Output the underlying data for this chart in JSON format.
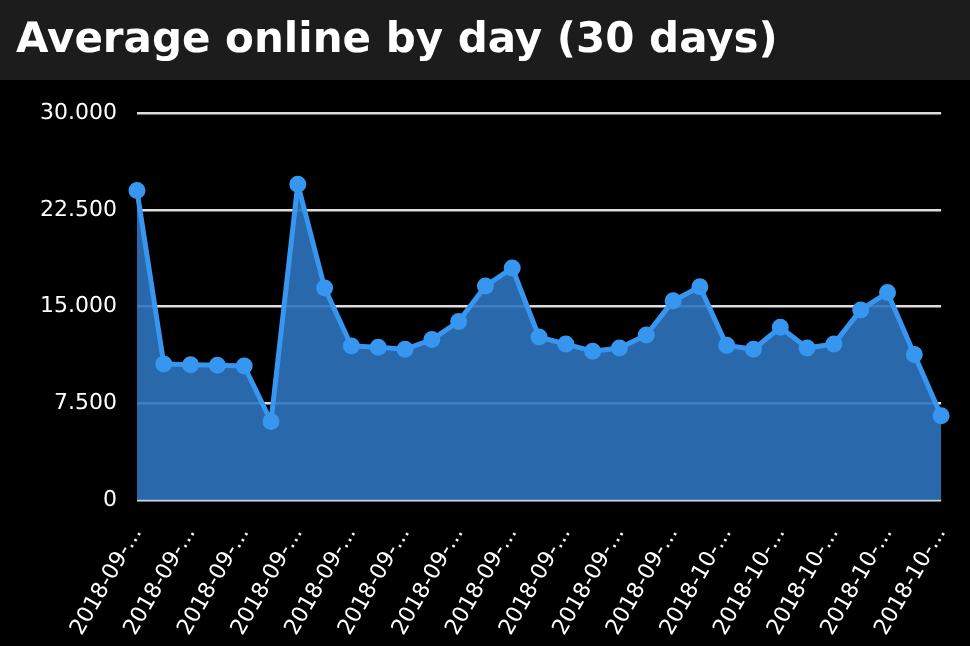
{
  "chart_data": {
    "type": "area",
    "title": "Average online by day (30 days)",
    "categories": [
      "2018-09-...",
      null,
      "2018-09-...",
      null,
      "2018-09-...",
      null,
      "2018-09-...",
      null,
      "2018-09-...",
      null,
      "2018-09-...",
      null,
      "2018-09-...",
      null,
      "2018-09-...",
      null,
      "2018-09-...",
      null,
      "2018-09-...",
      null,
      "2018-09-...",
      null,
      "2018-10-...",
      null,
      "2018-10-...",
      null,
      "2018-10-...",
      null,
      "2018-10-...",
      null,
      "2018-10-..."
    ],
    "series": [
      {
        "color": "#3796f0",
        "values": [
          24000,
          10550,
          10500,
          10450,
          10400,
          6100,
          24500,
          16450,
          11950,
          11850,
          11700,
          12450,
          13850,
          16600,
          18000,
          12650,
          12100,
          11550,
          11800,
          12800,
          15450,
          16550,
          12000,
          11700,
          13400,
          11800,
          12100,
          14750,
          16100,
          11300,
          6550
        ]
      }
    ],
    "ylim": [
      0,
      30000
    ],
    "yticks": [
      {
        "value": 0,
        "label": "0"
      },
      {
        "value": 7500,
        "label": "7.500"
      },
      {
        "value": 15000,
        "label": "15.000"
      },
      {
        "value": 22500,
        "label": "22.500"
      },
      {
        "value": 30000,
        "label": "30.000"
      }
    ],
    "grid": "y",
    "marker": "circle",
    "legend": false
  }
}
